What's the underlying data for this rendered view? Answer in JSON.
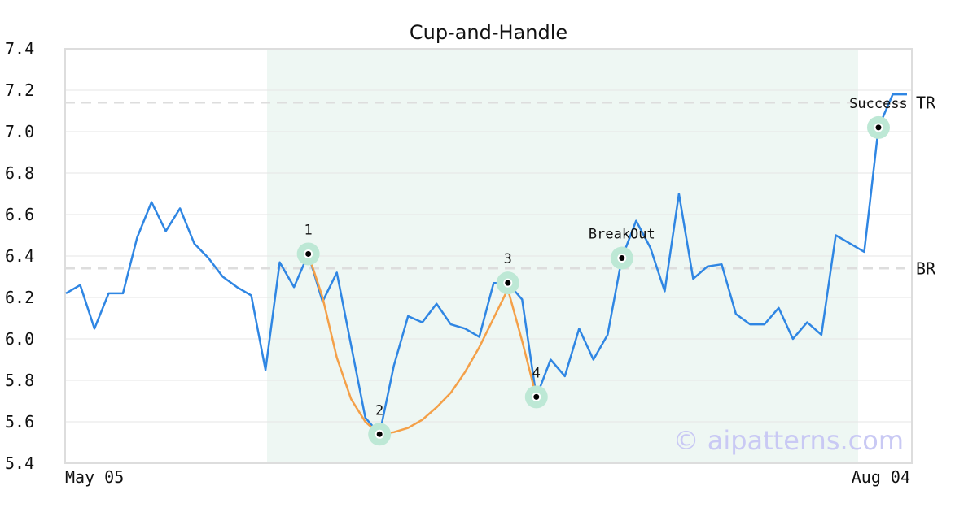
{
  "chart_data": {
    "type": "line",
    "title": "Cup-and-Handle",
    "xlabel": "",
    "ylabel": "",
    "ylim": [
      5.4,
      7.4
    ],
    "yticks": [
      "5.4",
      "5.6",
      "5.8",
      "6.0",
      "6.2",
      "6.4",
      "6.6",
      "6.8",
      "7.0",
      "7.2",
      "7.4"
    ],
    "xtick_labels": [
      "May 05",
      "Aug 04"
    ],
    "grid": "horizontal",
    "pattern_region": {
      "start_index": 15,
      "end_index": 59
    },
    "series": [
      {
        "values": [
          6.22,
          6.26,
          6.05,
          6.22,
          6.22,
          6.49,
          6.66,
          6.52,
          6.63,
          6.46,
          6.39,
          6.3,
          6.25,
          6.21,
          5.85,
          6.37,
          6.25,
          6.41,
          6.18,
          6.32,
          5.97,
          5.62,
          5.54,
          5.87,
          6.11,
          6.08,
          6.17,
          6.07,
          6.05,
          6.01,
          6.27,
          6.27,
          6.19,
          5.72,
          5.9,
          5.82,
          6.05,
          5.9,
          6.02,
          6.39,
          6.57,
          6.44,
          6.23,
          6.7,
          6.29,
          6.35,
          6.36,
          6.12,
          6.07,
          6.07,
          6.15,
          6.0,
          6.08,
          6.02,
          6.5,
          6.46,
          6.42,
          7.02,
          7.18,
          7.18
        ],
        "color": "#2f86e3"
      },
      {
        "kind": "cup-handle-fit",
        "color": "#f4a048",
        "points": [
          [
            17,
            6.41
          ],
          [
            18,
            6.2
          ],
          [
            19,
            5.91
          ],
          [
            20,
            5.71
          ],
          [
            21,
            5.6
          ],
          [
            22,
            5.54
          ],
          [
            23,
            5.55
          ],
          [
            24,
            5.57
          ],
          [
            25,
            5.61
          ],
          [
            26,
            5.67
          ],
          [
            27,
            5.74
          ],
          [
            28,
            5.84
          ],
          [
            29,
            5.96
          ],
          [
            30,
            6.1
          ],
          [
            31,
            6.24
          ],
          [
            32,
            5.99
          ],
          [
            33,
            5.72
          ]
        ]
      }
    ],
    "key_points": [
      {
        "label": "1",
        "index": 17,
        "value": 6.41
      },
      {
        "label": "2",
        "index": 22,
        "value": 5.54
      },
      {
        "label": "3",
        "index": 31,
        "value": 6.27
      },
      {
        "label": "4",
        "index": 33,
        "value": 5.72
      },
      {
        "label": "BreakOut",
        "index": 39,
        "value": 6.39
      },
      {
        "label": "Success",
        "index": 57,
        "value": 7.02
      }
    ],
    "reference_lines": [
      {
        "label": "TR",
        "value": 7.14
      },
      {
        "label": "BR",
        "value": 6.34
      }
    ],
    "watermark": "© aipatterns.com",
    "colors": {
      "line": "#2f86e3",
      "fit": "#f4a048",
      "region": "#eef7f3",
      "marker_halo": "#bde8d5",
      "reference": "#dddddd"
    }
  }
}
